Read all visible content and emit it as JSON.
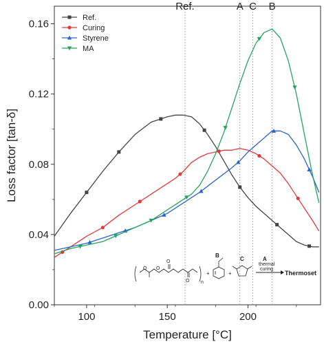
{
  "chart_data": {
    "type": "line",
    "xlabel": "Temperature [°C]",
    "ylabel": "Loss factor [tan-δ]",
    "xlim": [
      80,
      245
    ],
    "ylim": [
      0.0,
      0.17
    ],
    "x_ticks": [
      100,
      150,
      200
    ],
    "y_ticks": [
      0.0,
      0.04,
      0.08,
      0.12,
      0.16
    ],
    "x_tick_labels": [
      "100",
      "150",
      "200"
    ],
    "y_tick_labels": [
      "0.00",
      "0.04",
      "0.08",
      "0.12",
      "0.16"
    ],
    "legend_position": "top-left",
    "reference_lines": [
      {
        "label": "Ref.",
        "x": 161
      },
      {
        "label": "A",
        "x": 195
      },
      {
        "label": "C",
        "x": 203
      },
      {
        "label": "B",
        "x": 215
      }
    ],
    "series": [
      {
        "name": "Ref.",
        "color": "#444444",
        "marker": "square",
        "points": [
          [
            80,
            0.039
          ],
          [
            90,
            0.052
          ],
          [
            100,
            0.064
          ],
          [
            110,
            0.076
          ],
          [
            120,
            0.087
          ],
          [
            130,
            0.097
          ],
          [
            140,
            0.104
          ],
          [
            150,
            0.107
          ],
          [
            155,
            0.108
          ],
          [
            160,
            0.108
          ],
          [
            165,
            0.107
          ],
          [
            170,
            0.103
          ],
          [
            175,
            0.097
          ],
          [
            180,
            0.09
          ],
          [
            185,
            0.082
          ],
          [
            190,
            0.074
          ],
          [
            195,
            0.067
          ],
          [
            200,
            0.061
          ],
          [
            205,
            0.056
          ],
          [
            210,
            0.052
          ],
          [
            215,
            0.048
          ],
          [
            220,
            0.044
          ],
          [
            225,
            0.04
          ],
          [
            230,
            0.036
          ],
          [
            235,
            0.034
          ],
          [
            240,
            0.033
          ],
          [
            244,
            0.033
          ]
        ],
        "marker_x": [
          100,
          120,
          146,
          173,
          195,
          218,
          238
        ]
      },
      {
        "name": "Curing",
        "color": "#e03a3a",
        "marker": "circle",
        "points": [
          [
            80,
            0.027
          ],
          [
            90,
            0.033
          ],
          [
            100,
            0.039
          ],
          [
            110,
            0.044
          ],
          [
            120,
            0.051
          ],
          [
            130,
            0.057
          ],
          [
            140,
            0.063
          ],
          [
            150,
            0.069
          ],
          [
            155,
            0.072
          ],
          [
            160,
            0.076
          ],
          [
            165,
            0.081
          ],
          [
            170,
            0.084
          ],
          [
            175,
            0.086
          ],
          [
            180,
            0.087
          ],
          [
            185,
            0.088
          ],
          [
            190,
            0.088
          ],
          [
            195,
            0.089
          ],
          [
            200,
            0.088
          ],
          [
            205,
            0.086
          ],
          [
            210,
            0.083
          ],
          [
            215,
            0.079
          ],
          [
            220,
            0.075
          ],
          [
            225,
            0.069
          ],
          [
            230,
            0.062
          ],
          [
            235,
            0.055
          ],
          [
            240,
            0.048
          ],
          [
            244,
            0.042
          ]
        ],
        "marker_x": [
          85,
          110,
          133,
          158,
          182,
          207,
          231
        ]
      },
      {
        "name": "Styrene",
        "color": "#2a63c9",
        "marker": "triangle-up",
        "points": [
          [
            80,
            0.031
          ],
          [
            90,
            0.033
          ],
          [
            100,
            0.035
          ],
          [
            110,
            0.038
          ],
          [
            120,
            0.041
          ],
          [
            130,
            0.044
          ],
          [
            140,
            0.048
          ],
          [
            150,
            0.052
          ],
          [
            160,
            0.058
          ],
          [
            170,
            0.064
          ],
          [
            180,
            0.071
          ],
          [
            190,
            0.078
          ],
          [
            195,
            0.082
          ],
          [
            200,
            0.087
          ],
          [
            205,
            0.091
          ],
          [
            210,
            0.095
          ],
          [
            215,
            0.099
          ],
          [
            220,
            0.099
          ],
          [
            225,
            0.097
          ],
          [
            230,
            0.091
          ],
          [
            235,
            0.083
          ],
          [
            240,
            0.073
          ],
          [
            244,
            0.064
          ]
        ],
        "marker_x": [
          102,
          124,
          148,
          171,
          194,
          216,
          238
        ]
      },
      {
        "name": "MA",
        "color": "#23a45e",
        "marker": "triangle-down",
        "points": [
          [
            80,
            0.029
          ],
          [
            90,
            0.032
          ],
          [
            100,
            0.034
          ],
          [
            110,
            0.036
          ],
          [
            120,
            0.04
          ],
          [
            130,
            0.044
          ],
          [
            140,
            0.048
          ],
          [
            150,
            0.054
          ],
          [
            160,
            0.06
          ],
          [
            165,
            0.063
          ],
          [
            170,
            0.068
          ],
          [
            175,
            0.076
          ],
          [
            180,
            0.086
          ],
          [
            185,
            0.098
          ],
          [
            190,
            0.112
          ],
          [
            195,
            0.126
          ],
          [
            200,
            0.139
          ],
          [
            205,
            0.149
          ],
          [
            210,
            0.155
          ],
          [
            215,
            0.157
          ],
          [
            220,
            0.152
          ],
          [
            225,
            0.139
          ],
          [
            230,
            0.12
          ],
          [
            235,
            0.097
          ],
          [
            240,
            0.074
          ],
          [
            244,
            0.058
          ]
        ],
        "marker_x": [
          96,
          118,
          140,
          162,
          186,
          207,
          229
        ]
      }
    ]
  },
  "scheme": {
    "label_B": "B",
    "label_C": "C",
    "label_A": "A",
    "subscript_n": "n",
    "plus": "+",
    "arrow_top": "thermal",
    "arrow_bottom": "curing",
    "product": "Thermoset"
  }
}
